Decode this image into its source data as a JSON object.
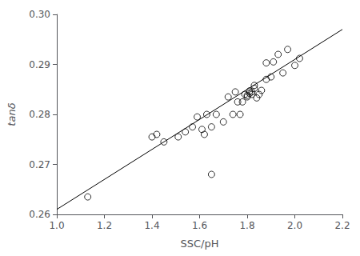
{
  "chart_data": {
    "type": "scatter",
    "xlabel": "SSC/pH",
    "ylabel": "tanδ",
    "xlim": [
      1.0,
      2.2
    ],
    "ylim": [
      0.26,
      0.3
    ],
    "xticks": [
      {
        "value": 1.0,
        "label": "1.0"
      },
      1.2,
      1.4,
      1.6,
      1.8,
      {
        "value": 2.0,
        "label": "2.0"
      },
      2.2
    ],
    "yticks": [
      0.26,
      0.27,
      0.28,
      0.29,
      {
        "value": 0.3,
        "label": "0.30"
      }
    ],
    "grid": false,
    "series": [
      {
        "type": "scatter",
        "color": "#000000",
        "marker": "open_circle",
        "x": [
          1.13,
          1.4,
          1.42,
          1.45,
          1.51,
          1.54,
          1.57,
          1.59,
          1.62,
          1.63,
          1.65,
          1.67,
          1.7,
          1.72,
          1.74,
          1.75,
          1.76,
          1.77,
          1.78,
          1.79,
          1.8,
          1.8,
          1.81,
          1.81,
          1.82,
          1.82,
          1.83,
          1.83,
          1.84,
          1.85,
          1.86,
          1.88,
          1.88,
          1.9,
          1.91,
          1.93,
          1.95,
          1.97,
          2.0,
          2.02,
          1.65,
          1.61
        ],
        "values": [
          0.2635,
          0.2755,
          0.276,
          0.2745,
          0.2755,
          0.2765,
          0.2775,
          0.2795,
          0.276,
          0.28,
          0.2775,
          0.28,
          0.2785,
          0.2835,
          0.28,
          0.2845,
          0.2825,
          0.28,
          0.2825,
          0.284,
          0.2835,
          0.2838,
          0.2842,
          0.2847,
          0.2845,
          0.284,
          0.2852,
          0.2858,
          0.2833,
          0.284,
          0.2848,
          0.2903,
          0.287,
          0.2875,
          0.2905,
          0.292,
          0.2883,
          0.293,
          0.2898,
          0.2912,
          0.268,
          0.277
        ]
      },
      {
        "type": "line",
        "color": "#000000",
        "line_style": "solid",
        "x": [
          1.0,
          2.2
        ],
        "values": [
          0.261,
          0.297
        ]
      }
    ]
  }
}
